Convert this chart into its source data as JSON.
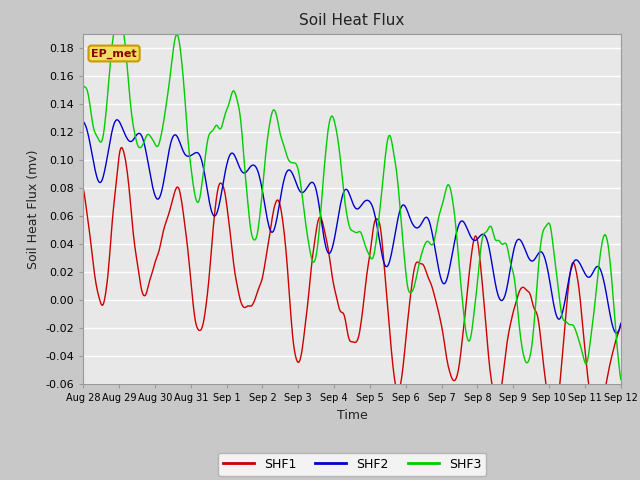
{
  "title": "Soil Heat Flux",
  "xlabel": "Time",
  "ylabel": "Soil Heat Flux (mv)",
  "ylim": [
    -0.06,
    0.19
  ],
  "yticks": [
    -0.06,
    -0.04,
    -0.02,
    0.0,
    0.02,
    0.04,
    0.06,
    0.08,
    0.1,
    0.12,
    0.14,
    0.16,
    0.18
  ],
  "xtick_labels": [
    "Aug 28",
    "Aug 29",
    "Aug 30",
    "Aug 31",
    "Sep 1",
    "Sep 2",
    "Sep 3",
    "Sep 4",
    "Sep 5",
    "Sep 6",
    "Sep 7",
    "Sep 8",
    "Sep 9",
    "Sep 10",
    "Sep 11",
    "Sep 12"
  ],
  "colors": {
    "SHF1": "#cc0000",
    "SHF2": "#0000cc",
    "SHF3": "#00cc00"
  },
  "annotation_text": "EP_met",
  "fig_facecolor": "#c8c8c8",
  "ax_facecolor": "#e8e8e8",
  "grid_color": "#ffffff",
  "legend_colors": {
    "SHF1": "#cc0000",
    "SHF2": "#0000cc",
    "SHF3": "#00cc00"
  }
}
